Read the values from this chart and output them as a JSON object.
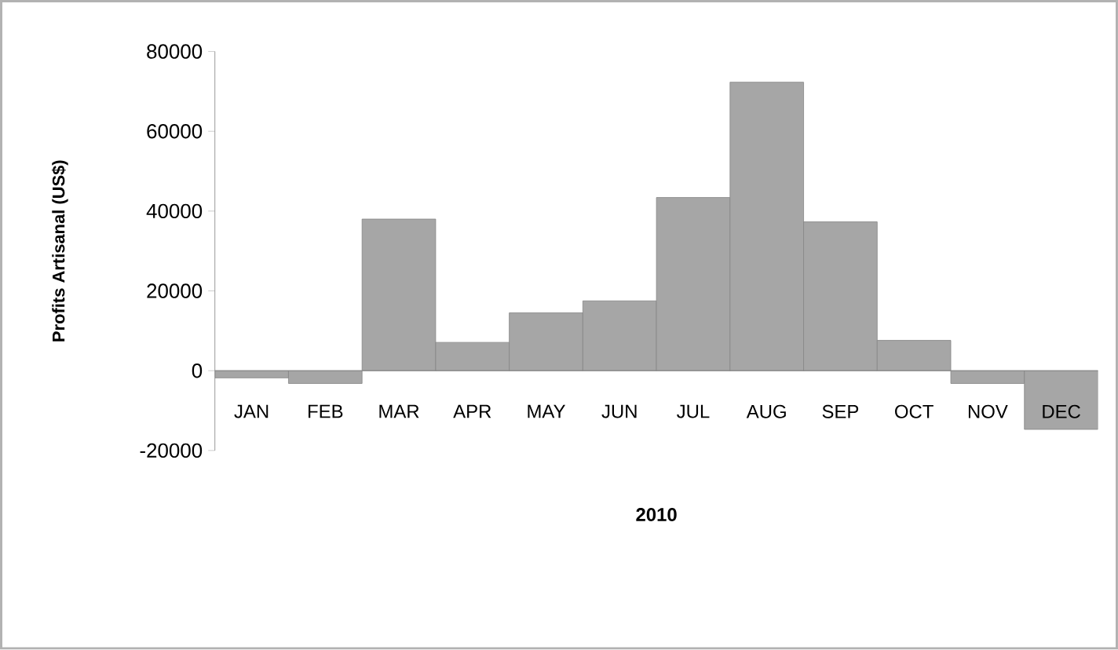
{
  "chart_data": {
    "type": "bar",
    "xlabel": "2010",
    "ylabel": "Profits Artisanal (US$)",
    "categories": [
      "JAN",
      "FEB",
      "MAR",
      "APR",
      "MAY",
      "JUN",
      "JUL",
      "AUG",
      "SEP",
      "OCT",
      "NOV",
      "DEC"
    ],
    "values": [
      -1800,
      -3200,
      38000,
      7100,
      14500,
      17500,
      43400,
      72300,
      37300,
      7600,
      -3200,
      -14700
    ],
    "color": "#a6a6a6",
    "ylim": [
      -20000,
      80000
    ],
    "yticks": [
      -20000,
      0,
      20000,
      40000,
      60000,
      80000
    ]
  }
}
